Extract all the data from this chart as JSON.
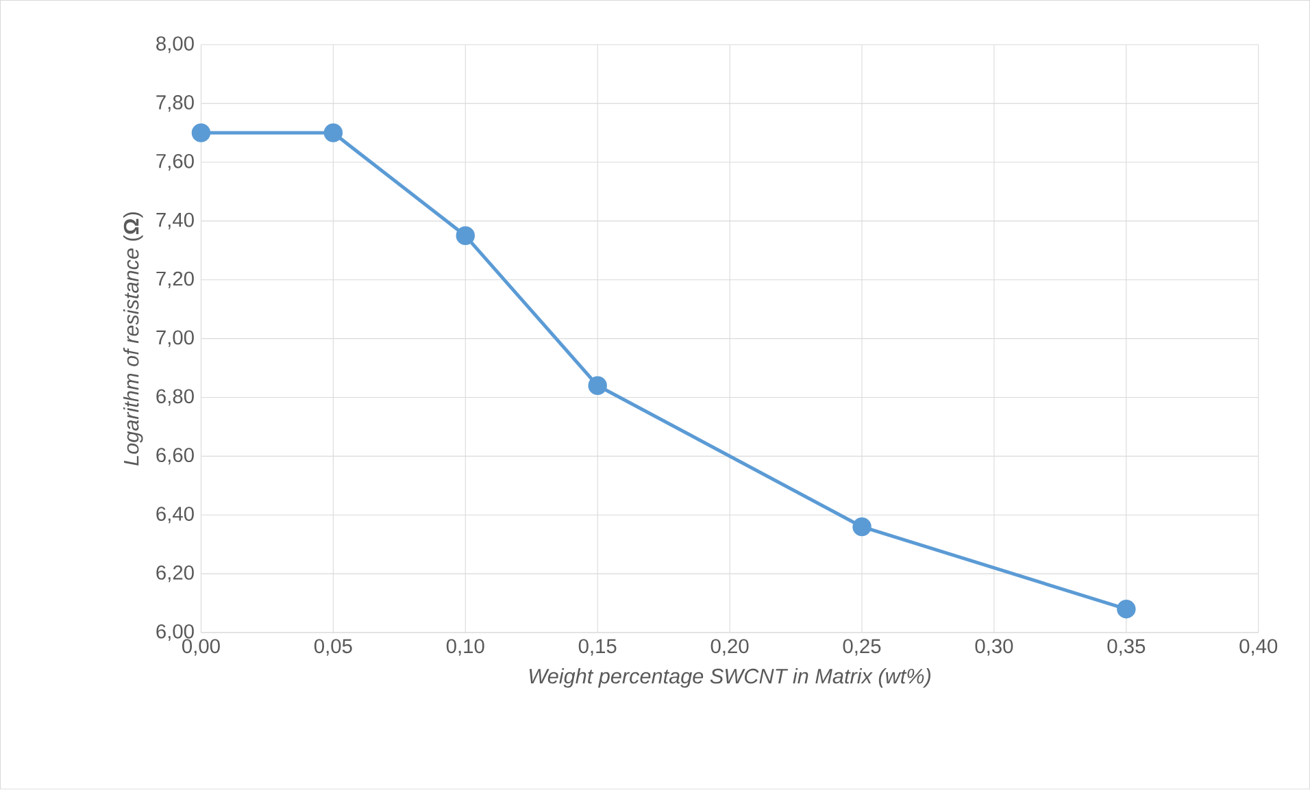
{
  "chart_data": {
    "type": "line",
    "xlabel": "*Weight percentage SWCNT in Matrix (wt%)*",
    "ylabel": "*Logarithm of resistance* (**Ω**)",
    "x": [
      0,
      0.05,
      0.1,
      0.15,
      0.25,
      0.35
    ],
    "series": [
      {
        "color": "#5b9bd5",
        "values": [
          7.7,
          7.7,
          7.35,
          6.84,
          6.36,
          6.08
        ]
      }
    ],
    "xlim": [
      0,
      0.4
    ],
    "ylim": [
      6,
      8
    ],
    "xticks": [
      {
        "value": 0,
        "label": "0,00"
      },
      {
        "value": 0.05,
        "label": "0,05"
      },
      {
        "value": 0.1,
        "label": "0,10"
      },
      {
        "value": 0.15,
        "label": "0,15"
      },
      {
        "value": 0.2,
        "label": "0,20"
      },
      {
        "value": 0.25,
        "label": "0,25"
      },
      {
        "value": 0.3,
        "label": "0,30"
      },
      {
        "value": 0.35,
        "label": "0,35"
      },
      {
        "value": 0.4,
        "label": "0,40"
      }
    ],
    "yticks": [
      {
        "value": 6,
        "label": "6,00"
      },
      {
        "value": 6.2,
        "label": "6,20"
      },
      {
        "value": 6.4,
        "label": "6,40"
      },
      {
        "value": 6.6,
        "label": "6,60"
      },
      {
        "value": 6.8,
        "label": "6,80"
      },
      {
        "value": 7,
        "label": "7,00"
      },
      {
        "value": 7.2,
        "label": "7,20"
      },
      {
        "value": 7.4,
        "label": "7,40"
      },
      {
        "value": 7.6,
        "label": "7,60"
      },
      {
        "value": 7.8,
        "label": "7,80"
      },
      {
        "value": 8,
        "label": "8,00"
      }
    ],
    "grid": true,
    "marker": "circle",
    "line_style": "solid"
  }
}
